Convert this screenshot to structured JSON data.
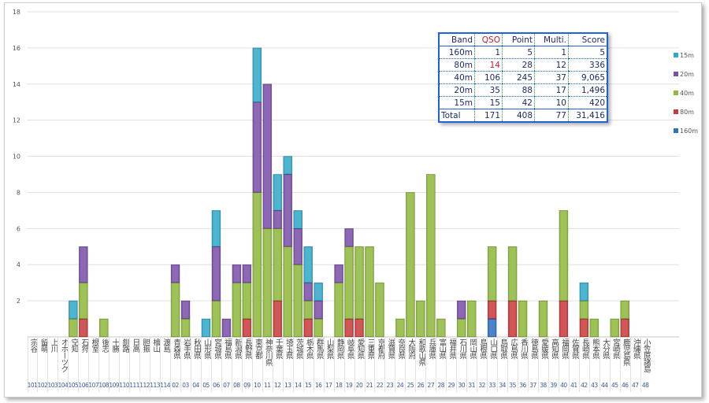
{
  "chart_data": {
    "type": "bar",
    "stacked": true,
    "title": "",
    "xlabel": "",
    "ylabel": "",
    "ylim": [
      0,
      18
    ],
    "yticks": [
      2,
      4,
      6,
      8,
      10,
      12,
      14,
      16,
      18
    ],
    "grid": true,
    "legend_position": "right",
    "categories": [
      {
        "code": "101",
        "name": "宗谷"
      },
      {
        "code": "102",
        "name": "留萌"
      },
      {
        "code": "103",
        "name": "上川"
      },
      {
        "code": "104",
        "name": "オホーツク"
      },
      {
        "code": "105",
        "name": "空知"
      },
      {
        "code": "106",
        "name": "石狩"
      },
      {
        "code": "107",
        "name": "根室"
      },
      {
        "code": "108",
        "name": "後志"
      },
      {
        "code": "109",
        "name": "十勝"
      },
      {
        "code": "110",
        "name": "釧路"
      },
      {
        "code": "111",
        "name": "日高"
      },
      {
        "code": "112",
        "name": "胆振"
      },
      {
        "code": "113",
        "name": "檜山"
      },
      {
        "code": "114",
        "name": "渡島"
      },
      {
        "code": "02",
        "name": "青森県"
      },
      {
        "code": "03",
        "name": "岩手県"
      },
      {
        "code": "04",
        "name": "秋田県"
      },
      {
        "code": "05",
        "name": "山形県"
      },
      {
        "code": "06",
        "name": "宮城県"
      },
      {
        "code": "07",
        "name": "福島県"
      },
      {
        "code": "08",
        "name": "新潟県"
      },
      {
        "code": "09",
        "name": "長野県"
      },
      {
        "code": "10",
        "name": "東京都"
      },
      {
        "code": "11",
        "name": "神奈川県"
      },
      {
        "code": "12",
        "name": "千葉県"
      },
      {
        "code": "13",
        "name": "埼玉県"
      },
      {
        "code": "14",
        "name": "茨城県"
      },
      {
        "code": "15",
        "name": "栃木県"
      },
      {
        "code": "16",
        "name": "群馬県"
      },
      {
        "code": "17",
        "name": "山梨県"
      },
      {
        "code": "18",
        "name": "静岡県"
      },
      {
        "code": "19",
        "name": "岐阜県"
      },
      {
        "code": "20",
        "name": "愛知県"
      },
      {
        "code": "21",
        "name": "三重県"
      },
      {
        "code": "22",
        "name": "京都府"
      },
      {
        "code": "23",
        "name": "滋賀県"
      },
      {
        "code": "24",
        "name": "奈良県"
      },
      {
        "code": "25",
        "name": "大阪府"
      },
      {
        "code": "26",
        "name": "和歌山県"
      },
      {
        "code": "27",
        "name": "兵庫県"
      },
      {
        "code": "28",
        "name": "富山県"
      },
      {
        "code": "29",
        "name": "福井県"
      },
      {
        "code": "30",
        "name": "石川県"
      },
      {
        "code": "31",
        "name": "岡山県"
      },
      {
        "code": "32",
        "name": "島根県"
      },
      {
        "code": "33",
        "name": "山口県"
      },
      {
        "code": "34",
        "name": "鳥取県"
      },
      {
        "code": "35",
        "name": "広島県"
      },
      {
        "code": "36",
        "name": "香川県"
      },
      {
        "code": "37",
        "name": "徳島県"
      },
      {
        "code": "38",
        "name": "愛媛県"
      },
      {
        "code": "39",
        "name": "高知県"
      },
      {
        "code": "40",
        "name": "福岡県"
      },
      {
        "code": "41",
        "name": "佐賀県"
      },
      {
        "code": "42",
        "name": "長崎県"
      },
      {
        "code": "43",
        "name": "熊本県"
      },
      {
        "code": "44",
        "name": "大分県"
      },
      {
        "code": "45",
        "name": "宮崎県"
      },
      {
        "code": "46",
        "name": "鹿児島県"
      },
      {
        "code": "47",
        "name": "沖縄県"
      },
      {
        "code": "48",
        "name": "小笠原諸島"
      }
    ],
    "series": [
      {
        "name": "160m",
        "color": "#2e6fc0",
        "values": [
          0,
          0,
          0,
          0,
          0,
          0,
          0,
          0,
          0,
          0,
          0,
          0,
          0,
          0,
          0,
          0,
          0,
          0,
          0,
          0,
          0,
          0,
          0,
          0,
          0,
          0,
          0,
          0,
          0,
          0,
          0,
          0,
          0,
          0,
          0,
          0,
          0,
          0,
          0,
          0,
          0,
          0,
          0,
          0,
          0,
          1,
          0,
          0,
          0,
          0,
          0,
          0,
          0,
          0,
          0,
          0,
          0,
          0,
          0,
          0,
          0
        ]
      },
      {
        "name": "80m",
        "color": "#c83a3a",
        "values": [
          0,
          0,
          0,
          0,
          0,
          1,
          0,
          0,
          0,
          0,
          0,
          0,
          0,
          0,
          0,
          0,
          0,
          0,
          0,
          0,
          0,
          1,
          0,
          0,
          2,
          0,
          0,
          1,
          0,
          0,
          0,
          1,
          1,
          0,
          0,
          0,
          0,
          0,
          0,
          0,
          0,
          0,
          0,
          0,
          0,
          1,
          0,
          2,
          0,
          0,
          0,
          0,
          2,
          0,
          1,
          0,
          0,
          0,
          1,
          0,
          0
        ]
      },
      {
        "name": "40m",
        "color": "#8db83a",
        "values": [
          0,
          0,
          0,
          0,
          1,
          2,
          0,
          1,
          0,
          0,
          0,
          0,
          0,
          0,
          3,
          1,
          0,
          0,
          2,
          0,
          3,
          2,
          8,
          6,
          4,
          5,
          4,
          1,
          1,
          0,
          3,
          4,
          4,
          5,
          3,
          0,
          1,
          8,
          2,
          9,
          1,
          0,
          1,
          2,
          0,
          3,
          0,
          3,
          2,
          0,
          2,
          0,
          5,
          0,
          1,
          1,
          0,
          1,
          1,
          0,
          0
        ]
      },
      {
        "name": "20m",
        "color": "#7a4fa8",
        "values": [
          0,
          0,
          0,
          0,
          0,
          2,
          0,
          0,
          0,
          0,
          0,
          0,
          0,
          0,
          1,
          1,
          0,
          0,
          3,
          1,
          1,
          1,
          5,
          8,
          1,
          4,
          2,
          1,
          1,
          0,
          1,
          1,
          0,
          0,
          0,
          0,
          0,
          0,
          0,
          0,
          0,
          0,
          1,
          0,
          0,
          0,
          0,
          0,
          0,
          0,
          0,
          0,
          0,
          0,
          0,
          0,
          0,
          0,
          0,
          0,
          0
        ]
      },
      {
        "name": "15m",
        "color": "#2fa8c8",
        "values": [
          0,
          0,
          0,
          0,
          1,
          0,
          0,
          0,
          0,
          0,
          0,
          0,
          0,
          0,
          0,
          0,
          0,
          1,
          2,
          0,
          0,
          0,
          3,
          0,
          2,
          1,
          1,
          2,
          1,
          0,
          0,
          0,
          0,
          0,
          0,
          0,
          0,
          0,
          0,
          0,
          0,
          0,
          0,
          0,
          0,
          0,
          0,
          0,
          0,
          0,
          0,
          0,
          0,
          0,
          1,
          0,
          0,
          0,
          0,
          0,
          0
        ]
      }
    ]
  },
  "legend": [
    "15m",
    "20m",
    "40m",
    "80m",
    "160m"
  ],
  "summary_table": {
    "headers": [
      "Band",
      "QSO",
      "Point",
      "Multi.",
      "Score"
    ],
    "rows": [
      [
        "160m",
        "1",
        "5",
        "1",
        "5"
      ],
      [
        "80m",
        "14",
        "28",
        "12",
        "336"
      ],
      [
        "40m",
        "106",
        "245",
        "37",
        "9,065"
      ],
      [
        "20m",
        "35",
        "88",
        "17",
        "1,496"
      ],
      [
        "15m",
        "15",
        "42",
        "10",
        "420"
      ]
    ],
    "total": [
      "Total",
      "171",
      "408",
      "77",
      "31,416"
    ]
  }
}
